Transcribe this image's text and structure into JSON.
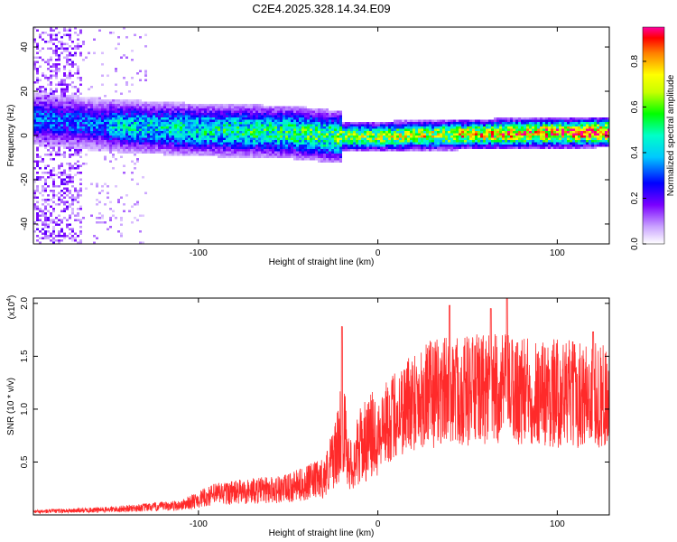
{
  "title": "C2E4.2025.328.14.34.E09",
  "colors": {
    "snr_line": "#ff2a2a",
    "axis": "#000000",
    "background": "#ffffff"
  },
  "chart_data": [
    {
      "type": "heatmap",
      "name": "spectrogram",
      "xlabel": "Height of straight line (km)",
      "ylabel": "Frequency (Hz)",
      "xlim": [
        -192,
        129
      ],
      "ylim": [
        -49,
        49
      ],
      "xticks": [
        -100,
        0,
        100
      ],
      "yticks": [
        -40,
        -20,
        0,
        20,
        40
      ],
      "colorbar": {
        "label": "Normalized spectral amplitude",
        "range": [
          0,
          0.95
        ],
        "ticks": [
          0.0,
          0.2,
          0.4,
          0.6,
          0.8
        ]
      },
      "description_values": {
        "band_center_hz": [
          {
            "x": -192,
            "y": 8
          },
          {
            "x": -150,
            "y": 5
          },
          {
            "x": -100,
            "y": 3
          },
          {
            "x": -50,
            "y": 2
          },
          {
            "x": -25,
            "y": 0
          },
          {
            "x": 0,
            "y": 0
          },
          {
            "x": 50,
            "y": 1
          },
          {
            "x": 129,
            "y": 2
          }
        ]
      }
    },
    {
      "type": "line",
      "name": "snr",
      "xlabel": "Height of straight line (km)",
      "ylabel": "SNR (10 * v/v)",
      "scale_label": "(x10",
      "scale_exp": "4",
      "scale_close": ")",
      "xlim": [
        -192,
        129
      ],
      "ylim": [
        0,
        20500
      ],
      "xticks": [
        -100,
        0,
        100
      ],
      "yticks": [
        0.5,
        1.0,
        1.5,
        2.0
      ],
      "trend": [
        {
          "x": -192,
          "y": 300
        },
        {
          "x": -150,
          "y": 500
        },
        {
          "x": -110,
          "y": 900
        },
        {
          "x": -90,
          "y": 2000
        },
        {
          "x": -50,
          "y": 2500
        },
        {
          "x": -30,
          "y": 3500
        },
        {
          "x": -22,
          "y": 6500
        },
        {
          "x": -20,
          "y": 9000
        },
        {
          "x": -15,
          "y": 4500
        },
        {
          "x": -10,
          "y": 6500
        },
        {
          "x": 0,
          "y": 8000
        },
        {
          "x": 10,
          "y": 9500
        },
        {
          "x": 20,
          "y": 11000
        },
        {
          "x": 40,
          "y": 11800
        },
        {
          "x": 70,
          "y": 11800
        },
        {
          "x": 100,
          "y": 11500
        },
        {
          "x": 129,
          "y": 11200
        }
      ],
      "peaks": [
        {
          "x": -20,
          "y": 17800
        },
        {
          "x": 40,
          "y": 19800
        },
        {
          "x": 63,
          "y": 19500
        },
        {
          "x": 72,
          "y": 20500
        },
        {
          "x": 120,
          "y": 17300
        }
      ]
    }
  ]
}
